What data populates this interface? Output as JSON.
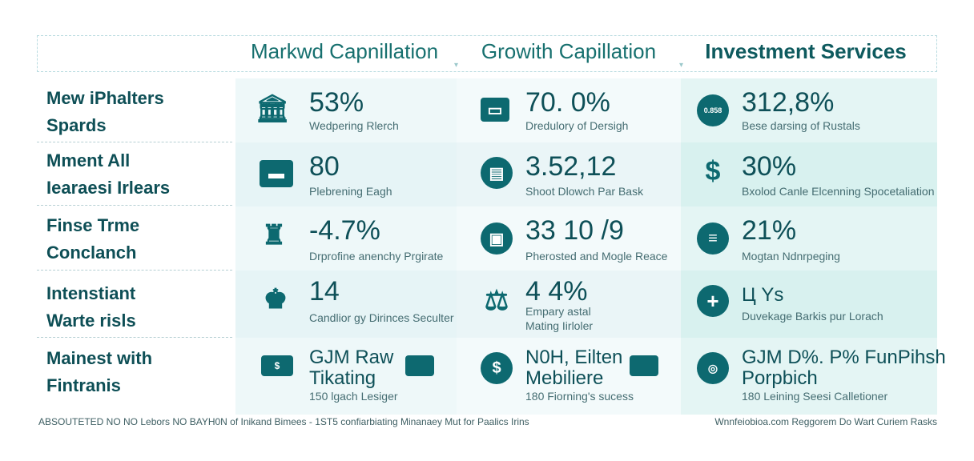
{
  "columns": {
    "col1": "Markwd Capnillation",
    "col2": "Growith Capillation",
    "col3": "Investment Services"
  },
  "rows": [
    {
      "label1": "Mew iPhalters",
      "label2": "Spards"
    },
    {
      "label1": "Mment All",
      "label2": "Iearaesi Irlears"
    },
    {
      "label1": "Finse Trme",
      "label2": "Conclanch"
    },
    {
      "label1": "Intenstiant",
      "label2": "Warte risls"
    },
    {
      "label1": "Mainest with",
      "label2": "Fintranis"
    }
  ],
  "cells": [
    [
      {
        "icon": "bank-icon",
        "value": "53%",
        "desc": "Wedpering Rlerch"
      },
      {
        "icon": "monitor-icon",
        "value": "70. 0%",
        "desc": "Dredulory of Dersigh"
      },
      {
        "icon": "coin-icon",
        "icon_text": "0.858",
        "value": "312,8%",
        "desc": "Bese darsing of Rustals"
      }
    ],
    [
      {
        "icon": "briefcase-icon",
        "value": "80",
        "desc": "Plebrening Eagh"
      },
      {
        "icon": "document-icon",
        "value": "3.52,12",
        "desc": "Shoot Dlowch Par Bask"
      },
      {
        "icon": "dollar-icon",
        "value": "30%",
        "desc": "Bxolod Canle Elcenning Spocetaliation"
      }
    ],
    [
      {
        "icon": "statue-icon",
        "value": "-4.7%",
        "desc": "Drprofine anenchy Prgirate"
      },
      {
        "icon": "wallet-icon",
        "value": "33 10 /9",
        "desc": "Pherosted and Mogle Reace"
      },
      {
        "icon": "list-icon",
        "value": "21%",
        "desc": "Mogtan Ndnrpeging"
      }
    ],
    [
      {
        "icon": "money-bag-icon",
        "value": "14",
        "desc": "Candlior gy Dirinces Seculter"
      },
      {
        "icon": "scale-icon",
        "value": "4 4%",
        "desc": "Empary astal",
        "desc2": "Mating Iirloler"
      },
      {
        "icon": "plus-icon",
        "value": "Ц Ys",
        "desc": "Duvekage Barkis pur Lorach"
      }
    ],
    [
      {
        "icon": "cash-icon",
        "value": "GJM Raw",
        "value2": "Tikating",
        "desc": "150 lgach Lesiger"
      },
      {
        "icon": "dollar-coin-icon",
        "value": "N0H, Eilten",
        "value2": "Mebiliere",
        "desc": "180 Fiorning's sucess"
      },
      {
        "icon": "globe-icon",
        "value": "GJM D%. P% FunPihsh",
        "value2": "Porpbich",
        "desc": "180 Leining Seesi Calletioner"
      }
    ]
  ],
  "footer": {
    "left": "ABSOUTETED NO NO Lebors NO BAYH0N of Inikand Bimees - 1ST5 confiarbiating Minanaey Mut for Paalics Irins",
    "right": "Wnnfeiobioa.com Reggorem Do Wart Curiem Rasks"
  }
}
